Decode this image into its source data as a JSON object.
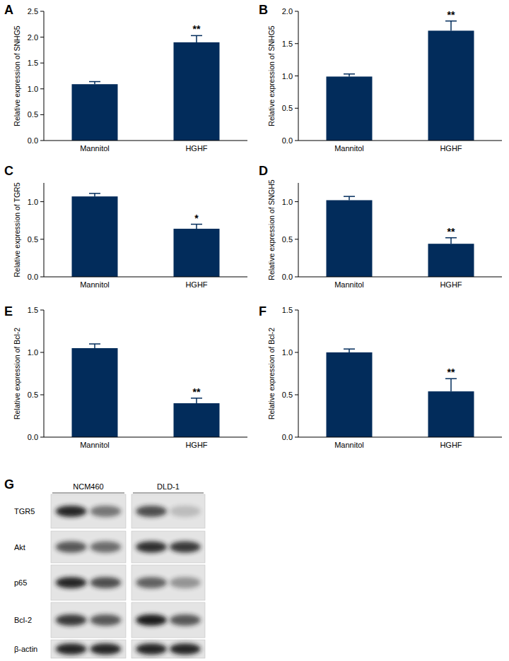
{
  "chart_data": [
    {
      "type": "bar",
      "title": "A",
      "y_label": "Relative expression of SNHG5",
      "categories": [
        "Mannitol",
        "HGHF"
      ],
      "values": [
        1.09,
        1.9
      ],
      "errors": [
        0.05,
        0.13
      ],
      "color": "#022c5b",
      "ylim": [
        0,
        2.5
      ],
      "yticks": [
        {
          "value": 0,
          "label": "0.0"
        },
        0.5,
        {
          "value": 1,
          "label": "1.0"
        },
        1.5,
        {
          "value": 2,
          "label": "2.0"
        },
        2.5
      ],
      "grid": false,
      "annotations": [
        {
          "category": "HGHF",
          "text": "**"
        }
      ]
    },
    {
      "type": "bar",
      "title": "B",
      "y_label": "Relative expression of SNHG5",
      "categories": [
        "Mannitol",
        "HGHF"
      ],
      "values": [
        0.99,
        1.7
      ],
      "errors": [
        0.04,
        0.15
      ],
      "color": "#022c5b",
      "ylim": [
        0,
        2
      ],
      "yticks": [
        {
          "value": 0,
          "label": "0.0"
        },
        0.5,
        {
          "value": 1,
          "label": "1.0"
        },
        1.5,
        {
          "value": 2,
          "label": "2.0"
        }
      ],
      "grid": false,
      "annotations": [
        {
          "category": "HGHF",
          "text": "**"
        }
      ]
    },
    {
      "type": "bar",
      "title": "C",
      "y_label": "Relative expression of TGR5",
      "categories": [
        "Mannitol",
        "HGHF"
      ],
      "values": [
        1.07,
        0.64
      ],
      "errors": [
        0.04,
        0.06
      ],
      "color": "#022c5b",
      "ylim": [
        0,
        1.25
      ],
      "yticks": [
        {
          "value": 0,
          "label": "0.0"
        },
        0.5,
        {
          "value": 1,
          "label": "1.0"
        }
      ],
      "grid": false,
      "annotations": [
        {
          "category": "HGHF",
          "text": "*"
        }
      ]
    },
    {
      "type": "bar",
      "title": "D",
      "y_label": "Relative expression of SNGH5",
      "categories": [
        "Mannitol",
        "HGHF"
      ],
      "values": [
        1.02,
        0.44
      ],
      "errors": [
        0.05,
        0.08
      ],
      "color": "#022c5b",
      "ylim": [
        0,
        1.25
      ],
      "yticks": [
        {
          "value": 0,
          "label": "0.0"
        },
        0.5,
        {
          "value": 1,
          "label": "1.0"
        }
      ],
      "grid": false,
      "annotations": [
        {
          "category": "HGHF",
          "text": "**"
        }
      ]
    },
    {
      "type": "bar",
      "title": "E",
      "y_label": "Relative expression of Bcl-2",
      "categories": [
        "Mannitol",
        "HGHF"
      ],
      "values": [
        1.05,
        0.4
      ],
      "errors": [
        0.05,
        0.06
      ],
      "color": "#022c5b",
      "ylim": [
        0,
        1.5
      ],
      "yticks": [
        {
          "value": 0,
          "label": "0.0"
        },
        0.5,
        {
          "value": 1,
          "label": "1.0"
        },
        1.5
      ],
      "grid": false,
      "annotations": [
        {
          "category": "HGHF",
          "text": "**"
        }
      ]
    },
    {
      "type": "bar",
      "title": "F",
      "y_label": "Relative expression of Bcl-2",
      "categories": [
        "Mannitol",
        "HGHF"
      ],
      "values": [
        1.0,
        0.54
      ],
      "errors": [
        0.04,
        0.15
      ],
      "color": "#022c5b",
      "ylim": [
        0,
        1.5
      ],
      "yticks": [
        {
          "value": 0,
          "label": "0.0"
        },
        0.5,
        {
          "value": 1,
          "label": "1.0"
        },
        1.5
      ],
      "grid": false,
      "annotations": [
        {
          "category": "HGHF",
          "text": "**"
        }
      ]
    }
  ],
  "blot": {
    "title": "G",
    "cell_lines": [
      "NCM460",
      "DLD-1"
    ],
    "rows": [
      {
        "label": "TGR5",
        "bands": [
          [
            0.95,
            0.55
          ],
          [
            0.75,
            0.2
          ]
        ]
      },
      {
        "label": "Akt",
        "bands": [
          [
            0.7,
            0.6
          ],
          [
            0.9,
            0.85
          ]
        ]
      },
      {
        "label": "p65",
        "bands": [
          [
            0.95,
            0.75
          ],
          [
            0.65,
            0.4
          ]
        ]
      },
      {
        "label": "Bcl-2",
        "bands": [
          [
            0.85,
            0.7
          ],
          [
            1.0,
            0.7
          ]
        ]
      },
      {
        "label": "β-actin",
        "bands": [
          [
            0.95,
            0.95
          ],
          [
            0.95,
            0.95
          ]
        ]
      }
    ]
  }
}
